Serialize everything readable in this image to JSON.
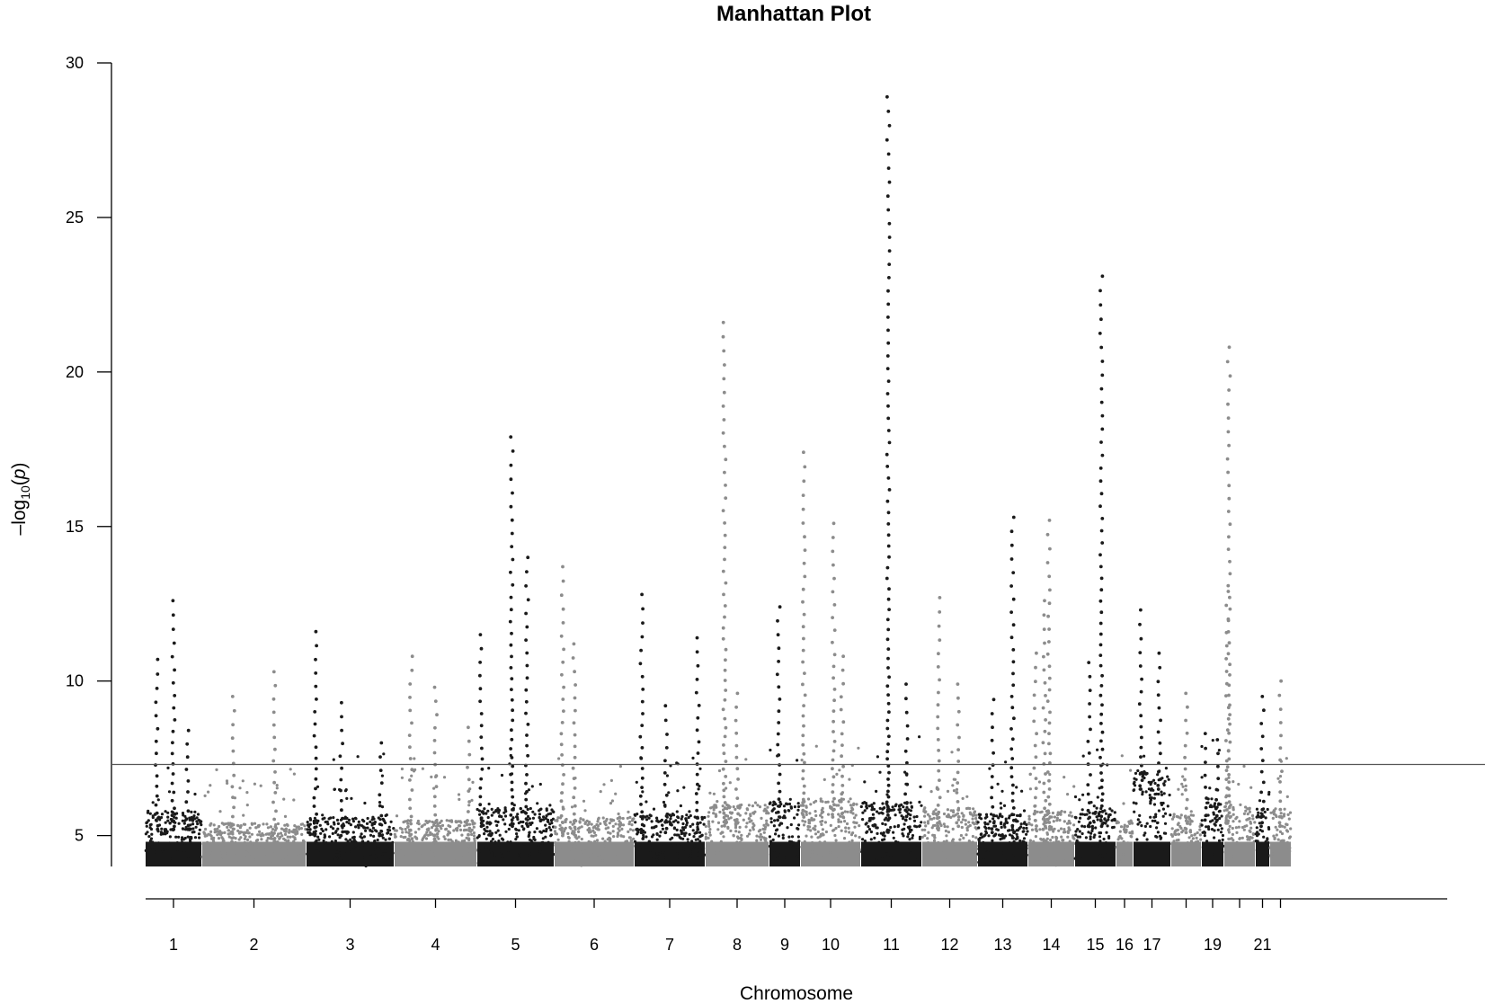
{
  "chart_data": {
    "type": "scatter",
    "title": "Manhattan Plot",
    "xlabel": "Chromosome",
    "ylabel": "-log10(p)",
    "ylim": [
      4,
      30
    ],
    "yticks": [
      5,
      10,
      15,
      20,
      25,
      30
    ],
    "threshold": 7.3,
    "colors": {
      "odd": "#1a1a1a",
      "even": "#8c8c8c",
      "threshold_line": "#555555"
    },
    "chromosomes": [
      {
        "chr": 1,
        "label": "1",
        "baseline": 5.2,
        "peaks": [
          {
            "x": 0.5,
            "y": 12.6
          },
          {
            "x": 0.2,
            "y": 10.7
          },
          {
            "x": 0.75,
            "y": 8.4
          }
        ]
      },
      {
        "chr": 2,
        "label": "2",
        "baseline": 4.8,
        "peaks": [
          {
            "x": 0.3,
            "y": 9.5
          },
          {
            "x": 0.7,
            "y": 10.3
          }
        ]
      },
      {
        "chr": 3,
        "label": "3",
        "baseline": 5.0,
        "peaks": [
          {
            "x": 0.1,
            "y": 11.6
          },
          {
            "x": 0.4,
            "y": 9.3
          },
          {
            "x": 0.85,
            "y": 8.0
          }
        ]
      },
      {
        "chr": 4,
        "label": "4",
        "baseline": 4.9,
        "peaks": [
          {
            "x": 0.2,
            "y": 10.8
          },
          {
            "x": 0.5,
            "y": 9.8
          },
          {
            "x": 0.9,
            "y": 8.5
          }
        ]
      },
      {
        "chr": 5,
        "label": "5",
        "baseline": 5.3,
        "peaks": [
          {
            "x": 0.45,
            "y": 17.9
          },
          {
            "x": 0.65,
            "y": 14.0
          },
          {
            "x": 0.05,
            "y": 11.5
          }
        ]
      },
      {
        "chr": 6,
        "label": "6",
        "baseline": 5.0,
        "peaks": [
          {
            "x": 0.1,
            "y": 13.7
          },
          {
            "x": 0.25,
            "y": 11.2
          }
        ]
      },
      {
        "chr": 7,
        "label": "7",
        "baseline": 5.1,
        "peaks": [
          {
            "x": 0.1,
            "y": 12.8
          },
          {
            "x": 0.45,
            "y": 9.2
          },
          {
            "x": 0.9,
            "y": 11.4
          }
        ]
      },
      {
        "chr": 8,
        "label": "8",
        "baseline": 5.4,
        "peaks": [
          {
            "x": 0.3,
            "y": 21.6
          },
          {
            "x": 0.5,
            "y": 9.6
          }
        ]
      },
      {
        "chr": 9,
        "label": "9",
        "baseline": 5.5,
        "peaks": [
          {
            "x": 0.3,
            "y": 12.4
          }
        ]
      },
      {
        "chr": 10,
        "label": "10",
        "baseline": 5.6,
        "peaks": [
          {
            "x": 0.55,
            "y": 15.1
          },
          {
            "x": 0.05,
            "y": 17.4
          },
          {
            "x": 0.7,
            "y": 10.8
          }
        ]
      },
      {
        "chr": 11,
        "label": "11",
        "baseline": 5.5,
        "peaks": [
          {
            "x": 0.45,
            "y": 28.9
          },
          {
            "x": 0.75,
            "y": 9.9
          }
        ]
      },
      {
        "chr": 12,
        "label": "12",
        "baseline": 5.3,
        "peaks": [
          {
            "x": 0.3,
            "y": 12.7
          },
          {
            "x": 0.65,
            "y": 9.9
          }
        ]
      },
      {
        "chr": 13,
        "label": "13",
        "baseline": 5.1,
        "peaks": [
          {
            "x": 0.7,
            "y": 15.3
          },
          {
            "x": 0.3,
            "y": 9.4
          }
        ]
      },
      {
        "chr": 14,
        "label": "14",
        "baseline": 5.2,
        "peaks": [
          {
            "x": 0.15,
            "y": 10.9
          },
          {
            "x": 0.35,
            "y": 12.6
          },
          {
            "x": 0.45,
            "y": 15.2
          }
        ]
      },
      {
        "chr": 15,
        "label": "15",
        "baseline": 5.3,
        "peaks": [
          {
            "x": 0.35,
            "y": 10.6
          },
          {
            "x": 0.65,
            "y": 23.1
          }
        ]
      },
      {
        "chr": 16,
        "label": "16",
        "baseline": 4.9,
        "peaks": []
      },
      {
        "chr": 17,
        "label": "17",
        "baseline": 6.5,
        "peaks": [
          {
            "x": 0.2,
            "y": 12.3
          },
          {
            "x": 0.7,
            "y": 10.9
          }
        ]
      },
      {
        "chr": 18,
        "label": "",
        "baseline": 5.1,
        "peaks": [
          {
            "x": 0.5,
            "y": 9.6
          }
        ]
      },
      {
        "chr": 19,
        "label": "19",
        "baseline": 5.5,
        "peaks": [
          {
            "x": 0.15,
            "y": 8.3
          },
          {
            "x": 0.7,
            "y": 8.1
          }
        ]
      },
      {
        "chr": 20,
        "label": "",
        "baseline": 5.4,
        "peaks": [
          {
            "x": 0.1,
            "y": 12.9
          },
          {
            "x": 0.15,
            "y": 20.8
          }
        ]
      },
      {
        "chr": 21,
        "label": "21",
        "baseline": 5.3,
        "peaks": [
          {
            "x": 0.5,
            "y": 9.5
          }
        ]
      },
      {
        "chr": 22,
        "label": "",
        "baseline": 5.3,
        "peaks": [
          {
            "x": 0.5,
            "y": 10.0
          }
        ]
      }
    ]
  }
}
